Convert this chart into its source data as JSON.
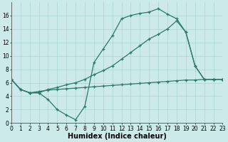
{
  "line1_x": [
    0,
    1,
    2,
    3,
    4,
    5,
    6,
    7,
    8,
    9,
    10,
    11,
    12,
    13,
    14,
    15,
    16,
    17,
    18,
    19,
    20,
    21,
    22,
    23
  ],
  "line1_y": [
    6.5,
    5.0,
    4.5,
    4.5,
    3.5,
    2.0,
    1.2,
    0.5,
    2.5,
    9.0,
    11.0,
    13.0,
    15.5,
    16.0,
    16.3,
    16.5,
    17.0,
    16.2,
    15.5,
    13.5,
    8.5,
    6.5,
    6.5,
    6.5
  ],
  "line2_x": [
    0,
    1,
    2,
    3,
    4,
    5,
    6,
    7,
    8,
    9,
    10,
    11,
    12,
    13,
    14,
    15,
    16,
    17,
    18,
    19,
    20,
    21,
    22,
    23
  ],
  "line2_y": [
    6.5,
    5.0,
    4.5,
    4.7,
    4.9,
    5.0,
    5.1,
    5.2,
    5.3,
    5.4,
    5.5,
    5.6,
    5.7,
    5.8,
    5.9,
    6.0,
    6.1,
    6.2,
    6.3,
    6.4,
    6.4,
    6.5,
    6.5,
    6.5
  ],
  "line3_x": [
    0,
    1,
    2,
    3,
    4,
    5,
    6,
    7,
    8,
    9,
    10,
    11,
    12,
    13,
    14,
    15,
    16,
    17,
    18,
    19,
    20,
    21,
    22,
    23
  ],
  "line3_y": [
    6.5,
    5.0,
    4.5,
    4.5,
    5.0,
    5.3,
    5.7,
    6.0,
    6.5,
    7.2,
    7.8,
    8.5,
    9.5,
    10.5,
    11.5,
    12.5,
    13.2,
    14.0,
    15.2,
    13.5,
    8.5,
    6.5,
    6.5,
    6.5
  ],
  "line_color": "#2a7a68",
  "bg_color": "#cceaea",
  "grid_color": "#aad4d4",
  "xlabel": "Humidex (Indice chaleur)",
  "ylim": [
    0,
    18
  ],
  "xlim": [
    0,
    23
  ],
  "yticks": [
    0,
    2,
    4,
    6,
    8,
    10,
    12,
    14,
    16
  ],
  "xticks": [
    0,
    1,
    2,
    3,
    4,
    5,
    6,
    7,
    8,
    9,
    10,
    11,
    12,
    13,
    14,
    15,
    16,
    17,
    18,
    19,
    20,
    21,
    22,
    23
  ],
  "marker": "+",
  "markersize": 3,
  "linewidth": 0.9,
  "xlabel_fontsize": 7,
  "tick_fontsize": 5.5
}
